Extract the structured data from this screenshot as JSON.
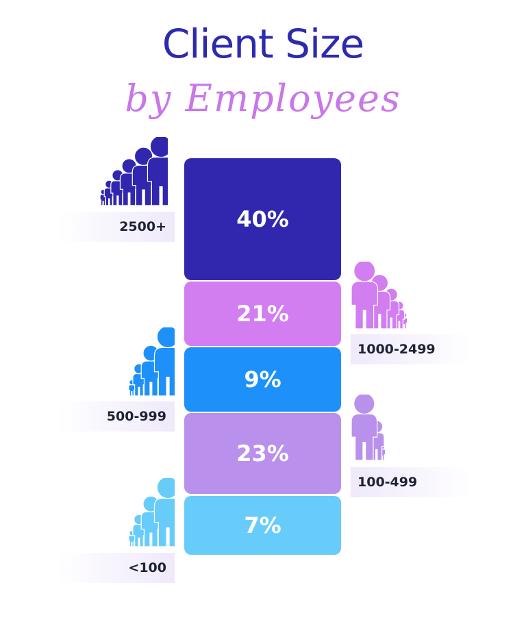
{
  "title": "Client Size",
  "subtitle": "by Employees",
  "chart_data": {
    "type": "bar",
    "stacked": true,
    "title": "Client Size",
    "subtitle": "by Employees",
    "categories": [
      "2500+",
      "1000-2499",
      "500-999",
      "100-499",
      "<100"
    ],
    "values": [
      40,
      21,
      9,
      23,
      7
    ],
    "value_labels": [
      "40%",
      "21%",
      "9%",
      "23%",
      "7%"
    ],
    "colors": [
      "#3127AE",
      "#D27DF0",
      "#1E90FA",
      "#B990EC",
      "#68CCFB"
    ],
    "icon_counts": [
      6,
      5,
      4,
      3,
      4
    ],
    "label_sides": [
      "left",
      "right",
      "left",
      "right",
      "left"
    ],
    "icon_name": "person-icon"
  }
}
